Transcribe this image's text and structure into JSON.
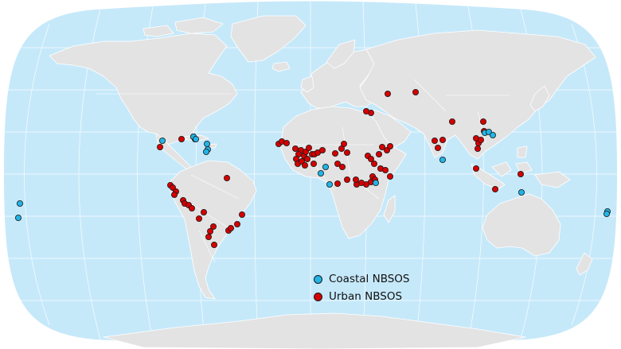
{
  "legend": {
    "coastal_label": "Coastal NBSOS",
    "urban_label": "Urban NBSOS"
  },
  "colors": {
    "ocean": "#c6e9fa",
    "land": "#e3e3e3",
    "border": "#ffffff",
    "graticule": "#ffffff",
    "coastal": "#22b4e6",
    "urban": "#d40000",
    "marker_stroke": "#1a1a1a"
  }
}
